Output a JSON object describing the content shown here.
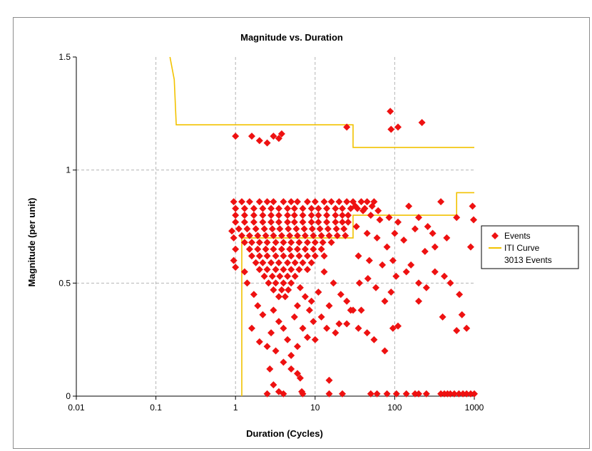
{
  "chart_data": {
    "type": "scatter",
    "title": "Magnitude vs. Duration",
    "xlabel": "Duration (Cycles)",
    "ylabel": "Magnitude (per unit)",
    "x_scale": "log",
    "xlim": [
      0.01,
      1000
    ],
    "ylim": [
      0,
      1.5
    ],
    "x_ticks": [
      {
        "value": 0.01,
        "label": "0.01"
      },
      {
        "value": 0.1,
        "label": "0.1"
      },
      {
        "value": 1,
        "label": "1"
      },
      {
        "value": 10,
        "label": "10"
      },
      {
        "value": 100,
        "label": "100"
      },
      {
        "value": 1000,
        "label": "1000"
      }
    ],
    "y_ticks": [
      {
        "value": 0,
        "label": "0"
      },
      {
        "value": 0.5,
        "label": "0.5"
      },
      {
        "value": 1,
        "label": "1"
      },
      {
        "value": 1.5,
        "label": "1.5"
      }
    ],
    "grid": true,
    "legend_position": "right",
    "legend": {
      "events_label": "Events",
      "iti_label": "ITI Curve",
      "count_label": "3013 Events"
    },
    "colors": {
      "events": "#ee1111",
      "iti_curve": "#f2c200",
      "grid": "#b4b4b4"
    },
    "series": [
      {
        "name": "ITI Curve",
        "marker": "line",
        "upper": [
          [
            0.15,
            1.5
          ],
          [
            0.17,
            1.4
          ],
          [
            0.18,
            1.2
          ],
          [
            30,
            1.2
          ],
          [
            30,
            1.1
          ],
          [
            1000,
            1.1
          ]
        ],
        "lower": [
          [
            1.2,
            0
          ],
          [
            1.2,
            0.7
          ],
          [
            30,
            0.7
          ],
          [
            30,
            0.8
          ],
          [
            600,
            0.8
          ],
          [
            600,
            0.9
          ],
          [
            1000,
            0.9
          ]
        ]
      },
      {
        "name": "Events",
        "marker": "diamond",
        "points": [
          [
            1.0,
            1.15
          ],
          [
            1.6,
            1.15
          ],
          [
            2.0,
            1.13
          ],
          [
            2.5,
            1.12
          ],
          [
            3.0,
            1.15
          ],
          [
            3.5,
            1.14
          ],
          [
            3.8,
            1.16
          ],
          [
            25,
            1.19
          ],
          [
            88,
            1.26
          ],
          [
            90,
            1.18
          ],
          [
            110,
            1.19
          ],
          [
            220,
            1.21
          ],
          [
            0.95,
            0.86
          ],
          [
            1.2,
            0.86
          ],
          [
            1.5,
            0.86
          ],
          [
            2,
            0.86
          ],
          [
            2.5,
            0.86
          ],
          [
            3,
            0.86
          ],
          [
            4,
            0.86
          ],
          [
            5,
            0.86
          ],
          [
            6,
            0.86
          ],
          [
            8,
            0.86
          ],
          [
            10,
            0.86
          ],
          [
            13,
            0.86
          ],
          [
            16,
            0.86
          ],
          [
            20,
            0.86
          ],
          [
            25,
            0.86
          ],
          [
            30,
            0.86
          ],
          [
            38,
            0.86
          ],
          [
            45,
            0.86
          ],
          [
            55,
            0.86
          ],
          [
            1.0,
            0.83
          ],
          [
            1.3,
            0.83
          ],
          [
            1.7,
            0.83
          ],
          [
            2.2,
            0.83
          ],
          [
            2.8,
            0.83
          ],
          [
            3.5,
            0.83
          ],
          [
            4.5,
            0.83
          ],
          [
            5.5,
            0.83
          ],
          [
            7,
            0.83
          ],
          [
            9,
            0.83
          ],
          [
            11,
            0.83
          ],
          [
            14,
            0.83
          ],
          [
            18,
            0.83
          ],
          [
            22,
            0.83
          ],
          [
            28,
            0.83
          ],
          [
            34,
            0.83
          ],
          [
            42,
            0.83
          ],
          [
            52,
            0.84
          ],
          [
            62,
            0.82
          ],
          [
            1.0,
            0.8
          ],
          [
            1.3,
            0.8
          ],
          [
            1.7,
            0.8
          ],
          [
            2.2,
            0.8
          ],
          [
            2.8,
            0.8
          ],
          [
            3.5,
            0.8
          ],
          [
            4.5,
            0.8
          ],
          [
            5.5,
            0.8
          ],
          [
            7,
            0.8
          ],
          [
            9,
            0.8
          ],
          [
            11,
            0.8
          ],
          [
            14,
            0.8
          ],
          [
            18,
            0.8
          ],
          [
            22,
            0.8
          ],
          [
            26,
            0.8
          ],
          [
            1.0,
            0.77
          ],
          [
            1.3,
            0.77
          ],
          [
            1.7,
            0.77
          ],
          [
            2.2,
            0.77
          ],
          [
            2.8,
            0.77
          ],
          [
            3.5,
            0.77
          ],
          [
            4.5,
            0.77
          ],
          [
            5.5,
            0.77
          ],
          [
            7,
            0.77
          ],
          [
            9,
            0.77
          ],
          [
            11,
            0.77
          ],
          [
            14,
            0.77
          ],
          [
            18,
            0.77
          ],
          [
            22,
            0.77
          ],
          [
            26,
            0.77
          ],
          [
            1.1,
            0.74
          ],
          [
            1.4,
            0.74
          ],
          [
            1.8,
            0.74
          ],
          [
            2.3,
            0.74
          ],
          [
            2.9,
            0.74
          ],
          [
            3.6,
            0.74
          ],
          [
            4.6,
            0.74
          ],
          [
            5.8,
            0.74
          ],
          [
            7.3,
            0.74
          ],
          [
            9.2,
            0.74
          ],
          [
            11.5,
            0.74
          ],
          [
            14.5,
            0.74
          ],
          [
            18.5,
            0.74
          ],
          [
            23,
            0.74
          ],
          [
            1.2,
            0.71
          ],
          [
            1.5,
            0.71
          ],
          [
            1.9,
            0.71
          ],
          [
            2.4,
            0.71
          ],
          [
            3.0,
            0.71
          ],
          [
            3.8,
            0.71
          ],
          [
            4.8,
            0.71
          ],
          [
            6.0,
            0.71
          ],
          [
            7.5,
            0.71
          ],
          [
            9.5,
            0.71
          ],
          [
            12,
            0.71
          ],
          [
            15,
            0.71
          ],
          [
            19,
            0.71
          ],
          [
            24,
            0.71
          ],
          [
            1.3,
            0.68
          ],
          [
            1.6,
            0.68
          ],
          [
            2.0,
            0.68
          ],
          [
            2.5,
            0.68
          ],
          [
            3.2,
            0.68
          ],
          [
            4.0,
            0.68
          ],
          [
            5.0,
            0.68
          ],
          [
            6.3,
            0.68
          ],
          [
            8.0,
            0.68
          ],
          [
            10,
            0.68
          ],
          [
            12.5,
            0.68
          ],
          [
            16,
            0.68
          ],
          [
            1.5,
            0.65
          ],
          [
            1.9,
            0.65
          ],
          [
            2.4,
            0.65
          ],
          [
            3.0,
            0.65
          ],
          [
            3.8,
            0.65
          ],
          [
            4.8,
            0.65
          ],
          [
            6.0,
            0.65
          ],
          [
            7.5,
            0.65
          ],
          [
            9.5,
            0.65
          ],
          [
            12,
            0.65
          ],
          [
            1.6,
            0.62
          ],
          [
            2.0,
            0.62
          ],
          [
            2.5,
            0.62
          ],
          [
            3.2,
            0.62
          ],
          [
            4.0,
            0.62
          ],
          [
            5.0,
            0.62
          ],
          [
            6.3,
            0.62
          ],
          [
            8,
            0.62
          ],
          [
            10,
            0.62
          ],
          [
            13,
            0.62
          ],
          [
            1.8,
            0.59
          ],
          [
            2.2,
            0.59
          ],
          [
            2.8,
            0.59
          ],
          [
            3.5,
            0.59
          ],
          [
            4.5,
            0.59
          ],
          [
            5.6,
            0.59
          ],
          [
            7,
            0.59
          ],
          [
            9,
            0.59
          ],
          [
            2.0,
            0.56
          ],
          [
            2.5,
            0.56
          ],
          [
            3.2,
            0.56
          ],
          [
            4.0,
            0.56
          ],
          [
            5.0,
            0.56
          ],
          [
            6.3,
            0.56
          ],
          [
            8,
            0.56
          ],
          [
            2.3,
            0.53
          ],
          [
            2.9,
            0.53
          ],
          [
            3.6,
            0.53
          ],
          [
            4.5,
            0.53
          ],
          [
            5.6,
            0.53
          ],
          [
            2.6,
            0.5
          ],
          [
            3.2,
            0.5
          ],
          [
            4.0,
            0.5
          ],
          [
            5.0,
            0.5
          ],
          [
            3.0,
            0.47
          ],
          [
            3.8,
            0.47
          ],
          [
            4.6,
            0.47
          ],
          [
            3.5,
            0.44
          ],
          [
            4.2,
            0.44
          ],
          [
            0.9,
            0.73
          ],
          [
            0.95,
            0.7
          ],
          [
            1.0,
            0.65
          ],
          [
            0.95,
            0.6
          ],
          [
            1.0,
            0.57
          ],
          [
            32,
            0.84
          ],
          [
            40,
            0.82
          ],
          [
            50,
            0.8
          ],
          [
            65,
            0.78
          ],
          [
            85,
            0.79
          ],
          [
            110,
            0.77
          ],
          [
            150,
            0.84
          ],
          [
            200,
            0.79
          ],
          [
            260,
            0.75
          ],
          [
            300,
            0.72
          ],
          [
            380,
            0.86
          ],
          [
            600,
            0.79
          ],
          [
            950,
            0.84
          ],
          [
            980,
            0.78
          ],
          [
            33,
            0.75
          ],
          [
            45,
            0.72
          ],
          [
            60,
            0.7
          ],
          [
            80,
            0.66
          ],
          [
            100,
            0.72
          ],
          [
            130,
            0.69
          ],
          [
            180,
            0.74
          ],
          [
            240,
            0.64
          ],
          [
            320,
            0.66
          ],
          [
            450,
            0.7
          ],
          [
            900,
            0.66
          ],
          [
            35,
            0.62
          ],
          [
            48,
            0.6
          ],
          [
            70,
            0.58
          ],
          [
            95,
            0.6
          ],
          [
            140,
            0.55
          ],
          [
            160,
            0.58
          ],
          [
            200,
            0.5
          ],
          [
            250,
            0.48
          ],
          [
            320,
            0.55
          ],
          [
            420,
            0.53
          ],
          [
            500,
            0.5
          ],
          [
            650,
            0.45
          ],
          [
            36,
            0.5
          ],
          [
            46,
            0.52
          ],
          [
            58,
            0.48
          ],
          [
            75,
            0.42
          ],
          [
            90,
            0.46
          ],
          [
            104,
            0.53
          ],
          [
            200,
            0.42
          ],
          [
            400,
            0.35
          ],
          [
            700,
            0.36
          ],
          [
            800,
            0.3
          ],
          [
            600,
            0.29
          ],
          [
            13,
            0.55
          ],
          [
            17,
            0.5
          ],
          [
            21,
            0.45
          ],
          [
            25,
            0.42
          ],
          [
            28,
            0.38
          ],
          [
            15,
            0.4
          ],
          [
            11,
            0.46
          ],
          [
            9,
            0.42
          ],
          [
            12,
            0.35
          ],
          [
            14,
            0.3
          ],
          [
            18,
            0.28
          ],
          [
            20,
            0.32
          ],
          [
            6.5,
            0.48
          ],
          [
            7.5,
            0.44
          ],
          [
            8.5,
            0.38
          ],
          [
            9.5,
            0.33
          ],
          [
            6.0,
            0.4
          ],
          [
            5.5,
            0.35
          ],
          [
            7,
            0.3
          ],
          [
            8,
            0.26
          ],
          [
            10,
            0.25
          ],
          [
            6,
            0.22
          ],
          [
            5,
            0.18
          ],
          [
            4.5,
            0.25
          ],
          [
            3.0,
            0.38
          ],
          [
            3.5,
            0.33
          ],
          [
            4.0,
            0.3
          ],
          [
            2.8,
            0.28
          ],
          [
            2.5,
            0.22
          ],
          [
            3.2,
            0.2
          ],
          [
            4.0,
            0.15
          ],
          [
            5.0,
            0.12
          ],
          [
            6.0,
            0.1
          ],
          [
            2.7,
            0.12
          ],
          [
            3.0,
            0.05
          ],
          [
            3.5,
            0.02
          ],
          [
            6.5,
            0.08
          ],
          [
            6.8,
            0.02
          ],
          [
            15,
            0.07
          ],
          [
            1.3,
            0.55
          ],
          [
            1.4,
            0.5
          ],
          [
            1.7,
            0.45
          ],
          [
            1.9,
            0.4
          ],
          [
            2.2,
            0.36
          ],
          [
            1.6,
            0.3
          ],
          [
            2.0,
            0.24
          ],
          [
            30,
            0.38
          ],
          [
            38,
            0.38
          ],
          [
            25,
            0.32
          ],
          [
            35,
            0.3
          ],
          [
            45,
            0.28
          ],
          [
            55,
            0.25
          ],
          [
            75,
            0.2
          ],
          [
            110,
            0.31
          ],
          [
            95,
            0.3
          ],
          [
            2.5,
            0.01
          ],
          [
            4,
            0.01
          ],
          [
            7,
            0.01
          ],
          [
            15,
            0.01
          ],
          [
            22,
            0.01
          ],
          [
            50,
            0.01
          ],
          [
            60,
            0.01
          ],
          [
            80,
            0.01
          ],
          [
            105,
            0.01
          ],
          [
            140,
            0.01
          ],
          [
            180,
            0.01
          ],
          [
            200,
            0.01
          ],
          [
            250,
            0.01
          ],
          [
            380,
            0.01
          ],
          [
            420,
            0.01
          ],
          [
            460,
            0.01
          ],
          [
            500,
            0.01
          ],
          [
            560,
            0.01
          ],
          [
            640,
            0.01
          ],
          [
            720,
            0.01
          ],
          [
            800,
            0.01
          ],
          [
            900,
            0.01
          ],
          [
            1000,
            0.01
          ]
        ]
      }
    ]
  }
}
